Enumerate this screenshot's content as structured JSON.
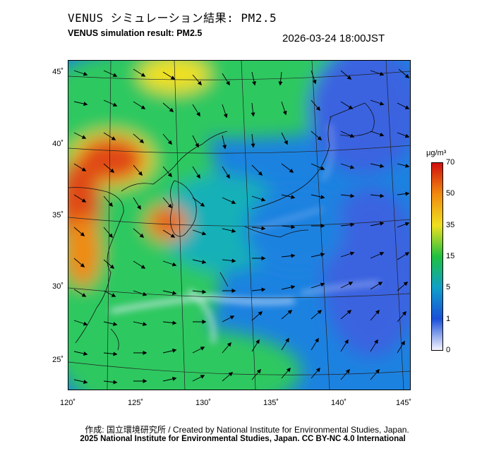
{
  "header": {
    "title_ja": "VENUS シミュレーション結果: PM2.5",
    "title_en": "VENUS simulation result: PM2.5",
    "timestamp": "2026-03-24 18:00JST"
  },
  "map": {
    "lat_labels": [
      "45˚",
      "40˚",
      "35˚",
      "30˚",
      "25˚"
    ],
    "lon_labels": [
      "120˚",
      "125˚",
      "130˚",
      "135˚",
      "140˚",
      "145˚"
    ]
  },
  "colorbar": {
    "unit": "μg/m³",
    "labels": [
      "70",
      "50",
      "35",
      "15",
      "5",
      "1",
      "0"
    ],
    "colors": [
      "#d01010",
      "#f08a10",
      "#f0e020",
      "#20c040",
      "#10a0c8",
      "#1a50d8",
      "#f4f4ff"
    ]
  },
  "footer": {
    "credit": "作成: 国立環境研究所 / Created by National Institute for Environmental Studies, Japan.",
    "copyright": "2025 National Institute for Environmental Studies, Japan. CC BY-NC 4.0 International"
  }
}
